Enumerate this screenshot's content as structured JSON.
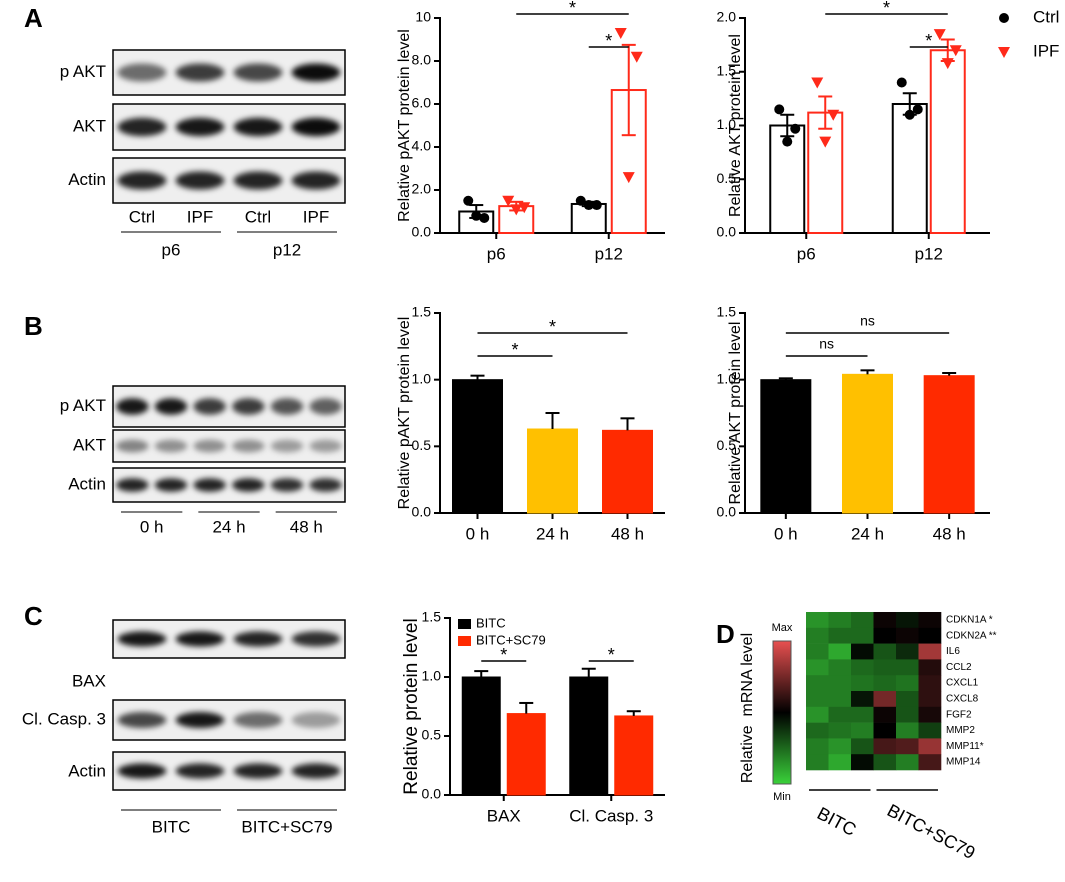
{
  "panel_labels": [
    "A",
    "B",
    "C",
    "D"
  ],
  "blots": [
    {
      "rows": [
        "p AKT",
        "AKT",
        "Actin"
      ],
      "lanes": [
        "Ctrl",
        "IPF",
        "Ctrl",
        "IPF"
      ],
      "groups": [
        "p6",
        "p12"
      ]
    },
    {
      "rows": [
        "p AKT",
        "AKT",
        "Actin"
      ],
      "groups": [
        "0 h",
        "24 h",
        "48 h"
      ]
    },
    {
      "rows": [
        "BAX",
        "Cl. Casp. 3",
        "Actin"
      ],
      "groups": [
        "BITC",
        "BITC+SC79"
      ]
    }
  ],
  "chart_data": [
    {
      "type": "bar",
      "y_label": "Relative pAKT protein level",
      "categories": [
        "p6",
        "p12"
      ],
      "series": [
        {
          "color": "#000000",
          "marker": "circle",
          "values": [
            1.0,
            1.35
          ],
          "errors": [
            0.3,
            0.1
          ],
          "points": [
            [
              1.5,
              0.7,
              0.8
            ],
            [
              1.5,
              1.3,
              1.3
            ]
          ]
        },
        {
          "color": "#ff2a1a",
          "marker": "triangle",
          "values": [
            1.25,
            6.65
          ],
          "errors": [
            0.2,
            2.1
          ],
          "points": [
            [
              1.5,
              1.2,
              1.1
            ],
            [
              9.3,
              8.2,
              2.6
            ]
          ]
        }
      ],
      "bar_fill": "#ffffff",
      "error_bars": "both",
      "ylim": [
        0,
        10
      ],
      "yticks": [
        {
          "value": 0,
          "label": "0.0"
        },
        {
          "value": 2,
          "label": "2.0"
        },
        {
          "value": 4,
          "label": "4.0"
        },
        {
          "value": 6,
          "label": "6.0"
        },
        {
          "value": 8,
          "label": "8.0"
        },
        10
      ],
      "annotations": [
        "*",
        "*"
      ]
    },
    {
      "type": "bar",
      "y_label": "Relative AKT protein level",
      "categories": [
        "p6",
        "p12"
      ],
      "series": [
        {
          "name": "Ctrl",
          "color": "#000000",
          "marker": "circle",
          "values": [
            1.0,
            1.2
          ],
          "errors": [
            0.1,
            0.1
          ],
          "points": [
            [
              1.15,
              0.97,
              0.85
            ],
            [
              1.4,
              1.15,
              1.1
            ]
          ]
        },
        {
          "name": "IPF",
          "color": "#ff2a1a",
          "marker": "triangle",
          "values": [
            1.12,
            1.7
          ],
          "errors": [
            0.15,
            0.1
          ],
          "points": [
            [
              1.4,
              1.1,
              0.85
            ],
            [
              1.85,
              1.7,
              1.58
            ]
          ]
        }
      ],
      "bar_fill": "#ffffff",
      "error_bars": "both",
      "legend": "right",
      "ylim": [
        0,
        2
      ],
      "yticks": [
        {
          "value": 0,
          "label": "0.0"
        },
        0.5,
        {
          "value": 1,
          "label": "1.0"
        },
        1.5,
        {
          "value": 2,
          "label": "2.0"
        }
      ],
      "annotations": [
        "*",
        "*"
      ]
    },
    {
      "type": "bar",
      "y_label": "Relative pAKT protein level",
      "categories": [
        "0 h",
        "24 h",
        "48 h"
      ],
      "values": [
        1.0,
        0.63,
        0.62
      ],
      "errors": [
        0.03,
        0.12,
        0.09
      ],
      "colors": [
        "#000000",
        "#ffc000",
        "#ff2a00"
      ],
      "error_bars": "up",
      "ylim": [
        0,
        1.5
      ],
      "yticks": [
        {
          "value": 0,
          "label": "0.0"
        },
        0.5,
        {
          "value": 1,
          "label": "1.0"
        },
        1.5
      ],
      "annotations": [
        "*",
        "*"
      ]
    },
    {
      "type": "bar",
      "y_label": "Relative AKT protein level",
      "categories": [
        "0 h",
        "24 h",
        "48 h"
      ],
      "values": [
        1.0,
        1.04,
        1.03
      ],
      "errors": [
        0.01,
        0.03,
        0.02
      ],
      "colors": [
        "#000000",
        "#ffc000",
        "#ff2a00"
      ],
      "error_bars": "up",
      "ylim": [
        0,
        1.5
      ],
      "yticks": [
        {
          "value": 0,
          "label": "0.0"
        },
        0.5,
        {
          "value": 1,
          "label": "1.0"
        },
        1.5
      ],
      "annotations": [
        "ns",
        "ns"
      ]
    },
    {
      "type": "bar",
      "y_label": "Relative protein level",
      "categories": [
        "BAX",
        "Cl. Casp. 3"
      ],
      "series": [
        {
          "name": "BITC",
          "color": "#000000",
          "values": [
            1.0,
            1.0
          ],
          "errors": [
            0.05,
            0.07
          ]
        },
        {
          "name": "BITC+SC79",
          "color": "#ff2a00",
          "values": [
            0.69,
            0.67
          ],
          "errors": [
            0.09,
            0.04
          ]
        }
      ],
      "error_bars": "up",
      "legend": "upper left",
      "ylim": [
        0,
        1.5
      ],
      "yticks": [
        {
          "value": 0,
          "label": "0.0"
        },
        0.5,
        {
          "value": 1,
          "label": "1.0"
        },
        1.5
      ],
      "annotations": [
        "*",
        "*"
      ]
    }
  ],
  "heatmap": {
    "y_label": "Relative  mRNA level",
    "scale_max": "Max",
    "scale_min": "Min",
    "colors": [
      "#3ad23a",
      "#000000",
      "#e85050"
    ],
    "rows": [
      "CDKN1A *",
      "CDKN2A **",
      "IL6",
      "CCL2",
      "CXCL1",
      "CXCL8",
      "FGF2",
      "MMP2",
      "MMP11*",
      "MMP14"
    ],
    "groups": [
      "BITC",
      "BITC+SC79"
    ],
    "values": [
      [
        -0.7,
        -0.6,
        -0.5,
        0.05,
        -0.1,
        0.05
      ],
      [
        -0.6,
        -0.5,
        -0.5,
        0.0,
        0.05,
        0.0
      ],
      [
        -0.6,
        -0.8,
        -0.05,
        -0.4,
        -0.2,
        0.7
      ],
      [
        -0.7,
        -0.6,
        -0.5,
        -0.45,
        -0.45,
        0.15
      ],
      [
        -0.6,
        -0.6,
        -0.55,
        -0.5,
        -0.55,
        0.2
      ],
      [
        -0.6,
        -0.6,
        -0.1,
        0.5,
        -0.4,
        0.2
      ],
      [
        -0.7,
        -0.5,
        -0.5,
        0.05,
        -0.4,
        0.1
      ],
      [
        -0.5,
        -0.55,
        -0.6,
        0.0,
        -0.6,
        -0.3
      ],
      [
        -0.6,
        -0.7,
        -0.4,
        0.3,
        0.35,
        0.65
      ],
      [
        -0.6,
        -0.8,
        -0.05,
        -0.4,
        -0.6,
        0.3
      ]
    ]
  }
}
